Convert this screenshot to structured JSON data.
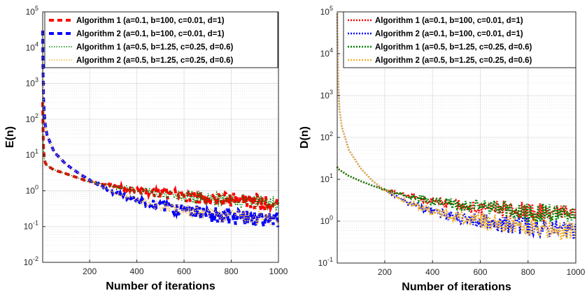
{
  "chart_data": [
    {
      "type": "line",
      "id": "left",
      "title": "",
      "xlabel": "Number of iterations",
      "ylabel": "E(n)",
      "xlim": [
        1,
        1000
      ],
      "ylim_log10": [
        -2,
        5
      ],
      "xticks": [
        "200",
        "400",
        "600",
        "800",
        "1000"
      ],
      "yticks": [
        {
          "base": "10",
          "exp": "-2"
        },
        {
          "base": "10",
          "exp": "-1"
        },
        {
          "base": "10",
          "exp": "0"
        },
        {
          "base": "10",
          "exp": "1"
        },
        {
          "base": "10",
          "exp": "2"
        },
        {
          "base": "10",
          "exp": "3"
        },
        {
          "base": "10",
          "exp": "4"
        },
        {
          "base": "10",
          "exp": "5"
        }
      ],
      "grid": true,
      "legend_position": "top-right",
      "series": [
        {
          "name": "Algorithm 1 (a=0.1, b=100, c=0.01, d=1)",
          "color": "#ff0000",
          "style": "dashed-thick",
          "x": [
            1,
            2,
            3,
            5,
            8,
            12,
            20,
            50,
            100,
            150,
            200,
            300,
            400,
            500,
            600,
            700,
            800,
            900,
            1000
          ],
          "y": [
            300,
            100,
            40,
            14,
            8,
            6,
            5,
            3.8,
            3.0,
            2.3,
            1.8,
            1.3,
            1.05,
            0.85,
            0.7,
            0.62,
            0.55,
            0.5,
            0.45
          ]
        },
        {
          "name": "Algorithm 2 (a=0.1, b=100, c=0.01, d=1)",
          "color": "#0000ff",
          "style": "dashed-thick",
          "x": [
            1,
            2,
            3,
            5,
            8,
            12,
            20,
            50,
            100,
            150,
            200,
            300,
            400,
            500,
            600,
            700,
            800,
            900,
            1000
          ],
          "y": [
            30000,
            5000,
            1500,
            350,
            150,
            70,
            35,
            12,
            5.5,
            3.2,
            2.0,
            0.9,
            0.55,
            0.37,
            0.28,
            0.22,
            0.19,
            0.17,
            0.15
          ]
        },
        {
          "name": "Algorithm 1 (a=0.5, b=1.25, c=0.25, d=0.6)",
          "color": "#008000",
          "style": "dotted",
          "x": [
            1,
            2,
            3,
            5,
            8,
            12,
            20,
            50,
            100,
            150,
            200,
            300,
            400,
            500,
            600,
            700,
            800,
            900,
            1000
          ],
          "y": [
            300,
            100,
            40,
            14,
            8,
            6,
            5,
            3.8,
            3.0,
            2.3,
            1.8,
            1.3,
            1.05,
            0.85,
            0.7,
            0.62,
            0.55,
            0.5,
            0.45
          ]
        },
        {
          "name": "Algorithm 2 (a=0.5, b=1.25, c=0.25, d=0.6)",
          "color": "#f0b030",
          "style": "dotted",
          "x": [
            1,
            2,
            3,
            5,
            8,
            12,
            20,
            50,
            100,
            150,
            200,
            300,
            400,
            500,
            600,
            700,
            800,
            900,
            1000
          ],
          "y": [
            30000,
            5000,
            1500,
            350,
            150,
            70,
            35,
            12,
            5.5,
            3.2,
            2.0,
            0.9,
            0.55,
            0.37,
            0.28,
            0.22,
            0.19,
            0.17,
            0.15
          ]
        }
      ]
    },
    {
      "type": "line",
      "id": "right",
      "title": "",
      "xlabel": "Number of iterations",
      "ylabel": "D(n)",
      "xlim": [
        1,
        1000
      ],
      "ylim_log10": [
        -1,
        5
      ],
      "xticks": [
        "200",
        "400",
        "600",
        "800",
        "1000"
      ],
      "yticks": [
        {
          "base": "10",
          "exp": "-1"
        },
        {
          "base": "10",
          "exp": "0"
        },
        {
          "base": "10",
          "exp": "1"
        },
        {
          "base": "10",
          "exp": "2"
        },
        {
          "base": "10",
          "exp": "3"
        },
        {
          "base": "10",
          "exp": "4"
        },
        {
          "base": "10",
          "exp": "5"
        }
      ],
      "grid": true,
      "legend_position": "top-right",
      "series": [
        {
          "name": "Algorithm 1 (a=0.1, b=100, c=0.01, d=1)",
          "color": "#ff0000",
          "style": "dotted-thick",
          "x": [
            1,
            2,
            5,
            10,
            20,
            50,
            100,
            150,
            200,
            300,
            400,
            500,
            600,
            700,
            800,
            900,
            1000
          ],
          "y": [
            20,
            19,
            18,
            17,
            15.5,
            12,
            9,
            7,
            5.6,
            4.0,
            3.0,
            2.5,
            2.1,
            1.9,
            1.7,
            1.55,
            1.45
          ]
        },
        {
          "name": "Algorithm 2 (a=0.1, b=100, c=0.01, d=1)",
          "color": "#0000ff",
          "style": "dotted-thick",
          "x": [
            1,
            2,
            5,
            10,
            20,
            50,
            100,
            150,
            200,
            300,
            400,
            500,
            600,
            700,
            800,
            900,
            1000
          ],
          "y": [
            90000,
            30000,
            2500,
            500,
            180,
            50,
            18,
            9,
            5.5,
            2.7,
            1.7,
            1.25,
            1.0,
            0.85,
            0.75,
            0.65,
            0.6
          ]
        },
        {
          "name": "Algorithm 1 (a=0.5, b=1.25, c=0.25, d=0.6)",
          "color": "#008000",
          "style": "dotted-thick",
          "x": [
            1,
            2,
            5,
            10,
            20,
            50,
            100,
            150,
            200,
            300,
            400,
            500,
            600,
            700,
            800,
            900,
            1000
          ],
          "y": [
            20,
            19,
            18,
            17,
            15.5,
            12,
            9,
            7,
            5.6,
            4.0,
            3.0,
            2.5,
            2.1,
            1.9,
            1.7,
            1.55,
            1.45
          ]
        },
        {
          "name": "Algorithm 2 (a=0.5, b=1.25, c=0.25, d=0.6)",
          "color": "#f0b030",
          "style": "dotted-thick",
          "x": [
            1,
            2,
            5,
            10,
            20,
            50,
            100,
            150,
            200,
            300,
            400,
            500,
            600,
            700,
            800,
            900,
            1000
          ],
          "y": [
            90000,
            30000,
            2500,
            500,
            180,
            50,
            18,
            9,
            5.5,
            2.7,
            1.7,
            1.25,
            1.0,
            0.85,
            0.75,
            0.65,
            0.6
          ]
        }
      ]
    }
  ]
}
